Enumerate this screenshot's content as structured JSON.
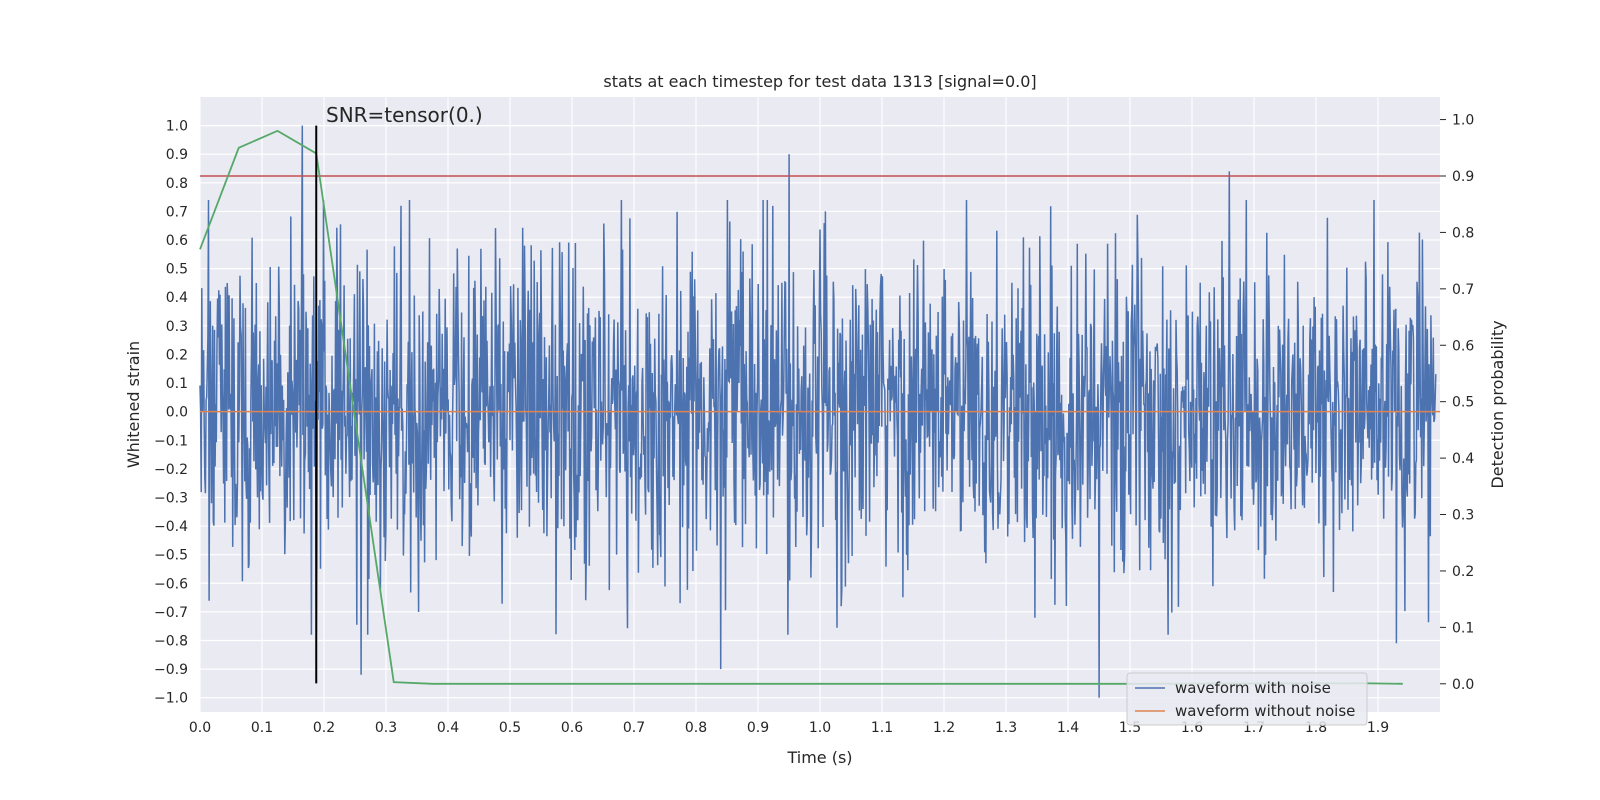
{
  "chart_data": {
    "type": "line",
    "title": "stats at each timestep for test data 1313 [signal=0.0]",
    "xlabel": "Time (s)",
    "ylabel_left": "Whitened strain",
    "ylabel_right": "Detection probability",
    "xlim": [
      0.0,
      2.0
    ],
    "ylim_left": [
      -1.05,
      1.1
    ],
    "ylim_right": [
      -0.05,
      1.04
    ],
    "x_ticks": [
      "0.0",
      "0.1",
      "0.2",
      "0.3",
      "0.4",
      "0.5",
      "0.6",
      "0.7",
      "0.8",
      "0.9",
      "1.0",
      "1.1",
      "1.2",
      "1.3",
      "1.4",
      "1.5",
      "1.6",
      "1.7",
      "1.8",
      "1.9"
    ],
    "y_ticks_left": [
      "1.0",
      "0.9",
      "0.8",
      "0.7",
      "0.6",
      "0.5",
      "0.4",
      "0.3",
      "0.2",
      "0.1",
      "0.0",
      "−0.1",
      "−0.2",
      "−0.3",
      "−0.4",
      "−0.5",
      "−0.6",
      "−0.7",
      "−0.8",
      "−0.9",
      "−1.0"
    ],
    "y_ticks_right": [
      "1.0",
      "0.9",
      "0.8",
      "0.7",
      "0.6",
      "0.5",
      "0.4",
      "0.3",
      "0.2",
      "0.1",
      "0.0"
    ],
    "grid": true,
    "legend_position": "bottom-right",
    "series": [
      {
        "name": "waveform with noise",
        "axis": "left",
        "color": "#4c72b0",
        "kind": "noise",
        "sample_rate": 1024,
        "noise_std": 0.28,
        "peaks": [
          [
            0.165,
            1.0
          ],
          [
            0.95,
            0.9
          ],
          [
            1.66,
            0.84
          ],
          [
            0.26,
            -0.92
          ],
          [
            1.45,
            -1.0
          ],
          [
            0.84,
            -0.9
          ],
          [
            1.93,
            -0.81
          ]
        ]
      },
      {
        "name": "waveform without noise",
        "axis": "left",
        "color": "#dd8452",
        "x": [
          0.0,
          2.0
        ],
        "y": [
          0.0,
          0.0
        ]
      },
      {
        "name": "detection probability",
        "axis": "right",
        "color": "#55a868",
        "x": [
          0.0,
          0.0625,
          0.125,
          0.1875,
          0.25,
          0.3125,
          0.375,
          0.4375,
          0.5,
          1.0,
          1.5,
          1.875,
          1.94
        ],
        "y": [
          0.77,
          0.95,
          0.98,
          0.94,
          0.47,
          0.003,
          0.0,
          0.0,
          0.0,
          0.0,
          0.0,
          0.001,
          0.0
        ]
      }
    ],
    "threshold": {
      "axis": "right",
      "value": 0.9,
      "color": "#c44e52"
    },
    "vertical_marker": {
      "x": 0.1875,
      "ymin": -0.95,
      "ymax": 1.0,
      "color": "#000000"
    },
    "annotation": {
      "text": "SNR=tensor(0.)",
      "x": 0.2,
      "y": 1.02
    }
  }
}
